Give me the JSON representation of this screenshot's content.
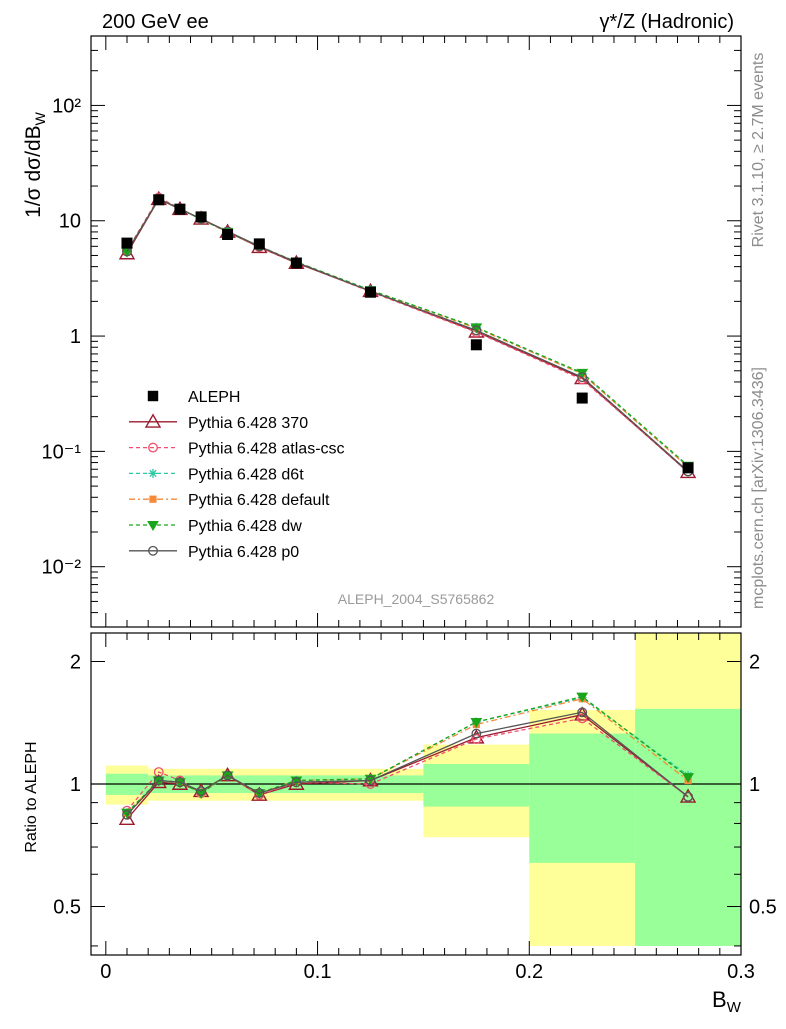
{
  "header": {
    "left": "200 GeV ee",
    "right": "γ*/Z (Hadronic)"
  },
  "side_labels": {
    "rivet": "Rivet 3.1.10, ≥ 2.7M events",
    "mcplots": "mcplots.cern.ch [arXiv:1306.3436]"
  },
  "analysis_tag": "ALEPH_2004_S5765862",
  "colors": {
    "data": "#000000",
    "p370": "#9b1b2e",
    "atlas_csc": "#f0506e",
    "d6t": "#2fc7a6",
    "default": "#f58a3a",
    "dw": "#1aa51a",
    "p0": "#555555",
    "band_inner": "#99ff99",
    "band_outer": "#ffff99"
  },
  "chart_data": [
    {
      "type": "line",
      "panel": "main",
      "xlabel": "B_W",
      "ylabel": "1/σ dσ/dB_W",
      "xlim": [
        -0.007,
        0.3
      ],
      "ylim": [
        0.003,
        400
      ],
      "yscale": "log",
      "y_tick_labels": [
        "10⁻²",
        "10⁻¹",
        "1",
        "10",
        "10²"
      ],
      "legend_position": "center-left",
      "x": [
        0.01,
        0.025,
        0.035,
        0.045,
        0.0575,
        0.0725,
        0.09,
        0.125,
        0.175,
        0.225,
        0.275
      ],
      "series": [
        {
          "name": "ALEPH",
          "marker": "square",
          "values": [
            6.4,
            15.2,
            12.6,
            10.8,
            7.6,
            6.3,
            4.3,
            2.4,
            0.84,
            0.29,
            0.072
          ]
        },
        {
          "name": "Pythia 6.428 370",
          "marker": "triangle-open",
          "values": [
            5.2,
            15.4,
            12.6,
            10.4,
            8.0,
            5.9,
            4.3,
            2.45,
            1.09,
            0.43,
            0.066
          ]
        },
        {
          "name": "Pythia 6.428 atlas-csc",
          "marker": "circle-open",
          "values": [
            5.5,
            15.9,
            12.8,
            10.3,
            7.95,
            5.9,
            4.35,
            2.42,
            1.08,
            0.42,
            0.067
          ]
        },
        {
          "name": "Pythia 6.428 d6t",
          "marker": "star",
          "values": [
            5.4,
            15.5,
            12.7,
            10.3,
            8.0,
            6.0,
            4.4,
            2.5,
            1.19,
            0.47,
            0.074
          ]
        },
        {
          "name": "Pythia 6.428 default",
          "marker": "square-filled",
          "values": [
            5.4,
            15.6,
            12.7,
            10.3,
            8.0,
            6.0,
            4.4,
            2.48,
            1.17,
            0.47,
            0.073
          ]
        },
        {
          "name": "Pythia 6.428 dw",
          "marker": "triangle-down-filled",
          "values": [
            5.4,
            15.5,
            12.7,
            10.3,
            8.0,
            6.0,
            4.4,
            2.5,
            1.19,
            0.48,
            0.075
          ]
        },
        {
          "name": "Pythia 6.428 p0",
          "marker": "circle-open",
          "values": [
            5.4,
            15.5,
            12.7,
            10.4,
            8.1,
            6.0,
            4.35,
            2.45,
            1.12,
            0.44,
            0.067
          ]
        }
      ]
    },
    {
      "type": "line",
      "panel": "ratio",
      "xlabel": "B_W",
      "ylabel": "Ratio to ALEPH",
      "xlim": [
        -0.007,
        0.3
      ],
      "ylim": [
        0.38,
        2.35
      ],
      "yscale": "log",
      "y_ticks": [
        0.5,
        1,
        2
      ],
      "y_tick_labels": [
        "0.5",
        "1",
        "2"
      ],
      "x_ticks": [
        0,
        0.1,
        0.2,
        0.3
      ],
      "x_tick_labels": [
        "0",
        "0.1",
        "0.2",
        "0.3"
      ],
      "x": [
        0.01,
        0.025,
        0.035,
        0.045,
        0.0575,
        0.0725,
        0.09,
        0.125,
        0.175,
        0.225,
        0.275
      ],
      "uncertainty_bands": [
        {
          "xmin": 0.0,
          "xmax": 0.02,
          "inner": [
            0.94,
            1.06
          ],
          "outer": [
            0.89,
            1.11
          ]
        },
        {
          "xmin": 0.02,
          "xmax": 0.15,
          "inner": [
            0.95,
            1.05
          ],
          "outer": [
            0.91,
            1.09
          ]
        },
        {
          "xmin": 0.15,
          "xmax": 0.2,
          "inner": [
            0.88,
            1.12
          ],
          "outer": [
            0.74,
            1.25
          ]
        },
        {
          "xmin": 0.2,
          "xmax": 0.25,
          "inner": [
            0.64,
            1.33
          ],
          "outer": [
            0.4,
            1.52
          ]
        },
        {
          "xmin": 0.25,
          "xmax": 0.3,
          "inner": [
            0.4,
            1.53
          ],
          "outer": [
            0.4,
            2.35
          ]
        }
      ],
      "series": [
        {
          "name": "Pythia 6.428 370",
          "values": [
            0.82,
            1.01,
            1.0,
            0.96,
            1.05,
            0.94,
            1.0,
            1.02,
            1.3,
            1.48,
            0.93
          ]
        },
        {
          "name": "Pythia 6.428 atlas-csc",
          "values": [
            0.86,
            1.07,
            1.02,
            0.95,
            1.05,
            0.94,
            1.01,
            1.0,
            1.29,
            1.45,
            0.93
          ]
        },
        {
          "name": "Pythia 6.428 d6t",
          "values": [
            0.85,
            1.02,
            1.01,
            0.95,
            1.05,
            0.95,
            1.02,
            1.03,
            1.42,
            1.63,
            1.05
          ]
        },
        {
          "name": "Pythia 6.428 default",
          "values": [
            0.85,
            1.02,
            1.01,
            0.95,
            1.05,
            0.95,
            1.02,
            1.03,
            1.4,
            1.62,
            1.02
          ]
        },
        {
          "name": "Pythia 6.428 dw",
          "values": [
            0.85,
            1.02,
            1.01,
            0.95,
            1.05,
            0.95,
            1.02,
            1.03,
            1.42,
            1.64,
            1.04
          ]
        },
        {
          "name": "Pythia 6.428 p0",
          "values": [
            0.84,
            1.02,
            1.01,
            0.96,
            1.05,
            0.95,
            1.01,
            1.02,
            1.33,
            1.5,
            0.93
          ]
        }
      ]
    }
  ]
}
